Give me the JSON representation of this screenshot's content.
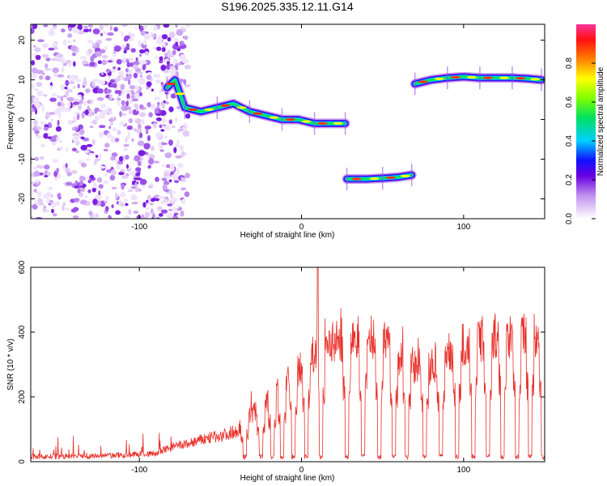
{
  "page_title": "S196.2025.335.12.11.G14",
  "chart_data": [
    {
      "type": "heatmap",
      "title": "S196.2025.335.12.11.G14",
      "xlabel": "Height of straight line (km)",
      "ylabel": "Frequency (Hz)",
      "xlim": [
        -167,
        150
      ],
      "ylim": [
        -25,
        24
      ],
      "xticks": [
        -100,
        0,
        100
      ],
      "yticks": [
        -20,
        -10,
        0,
        10,
        20
      ],
      "colorbar": {
        "label": "Normalized spectral amplitude",
        "range": [
          0.0,
          1.0
        ],
        "ticks": [
          0.0,
          0.2,
          0.4,
          0.6,
          0.8
        ]
      },
      "traces": [
        {
          "x": [
            -83,
            -78,
            -72,
            -62,
            -52,
            -42,
            -32,
            -22,
            -12,
            -2,
            8,
            18,
            27
          ],
          "y": [
            8,
            10,
            3,
            2,
            3,
            4,
            2,
            1,
            0,
            0,
            -1,
            -1,
            -1
          ]
        },
        {
          "x": [
            28,
            40,
            50,
            60,
            68
          ],
          "y": [
            -15,
            -15,
            -14.8,
            -14.5,
            -14
          ]
        },
        {
          "x": [
            70,
            80,
            90,
            100,
            110,
            120,
            130,
            140,
            148
          ],
          "y": [
            9,
            10,
            10.5,
            10.8,
            10.5,
            10.5,
            10.5,
            10.3,
            10
          ]
        }
      ],
      "noise_region_x": [
        -167,
        -70
      ]
    },
    {
      "type": "line",
      "xlabel": "Height of straight line (km)",
      "ylabel": "SNR (10 * v/v)",
      "xlim": [
        -167,
        150
      ],
      "ylim": [
        0,
        600
      ],
      "xticks": [
        -100,
        0,
        100
      ],
      "yticks": [
        0,
        200,
        400,
        600
      ],
      "color": "#e8302a",
      "baseline": [
        {
          "x": -167,
          "y": 15
        },
        {
          "x": -120,
          "y": 18
        },
        {
          "x": -90,
          "y": 25
        },
        {
          "x": -80,
          "y": 45
        },
        {
          "x": -70,
          "y": 55
        },
        {
          "x": -60,
          "y": 70
        },
        {
          "x": -50,
          "y": 80
        },
        {
          "x": -40,
          "y": 95
        },
        {
          "x": -30,
          "y": 150
        },
        {
          "x": -20,
          "y": 190
        },
        {
          "x": -10,
          "y": 235
        },
        {
          "x": 0,
          "y": 290
        },
        {
          "x": 10,
          "y": 340
        },
        {
          "x": 20,
          "y": 370
        },
        {
          "x": 30,
          "y": 380
        },
        {
          "x": 40,
          "y": 385
        },
        {
          "x": 50,
          "y": 370
        },
        {
          "x": 60,
          "y": 330
        },
        {
          "x": 70,
          "y": 300
        },
        {
          "x": 80,
          "y": 290
        },
        {
          "x": 90,
          "y": 330
        },
        {
          "x": 100,
          "y": 360
        },
        {
          "x": 110,
          "y": 375
        },
        {
          "x": 120,
          "y": 390
        },
        {
          "x": 130,
          "y": 395
        },
        {
          "x": 140,
          "y": 385
        },
        {
          "x": 150,
          "y": 390
        }
      ],
      "peak": {
        "x": 10,
        "y": 605
      },
      "dropouts_x": [
        -35,
        -25,
        -18,
        -12,
        -5,
        3,
        12,
        28,
        38,
        48,
        57,
        65,
        76,
        86,
        96,
        106,
        115,
        124,
        133,
        141,
        149
      ]
    }
  ]
}
